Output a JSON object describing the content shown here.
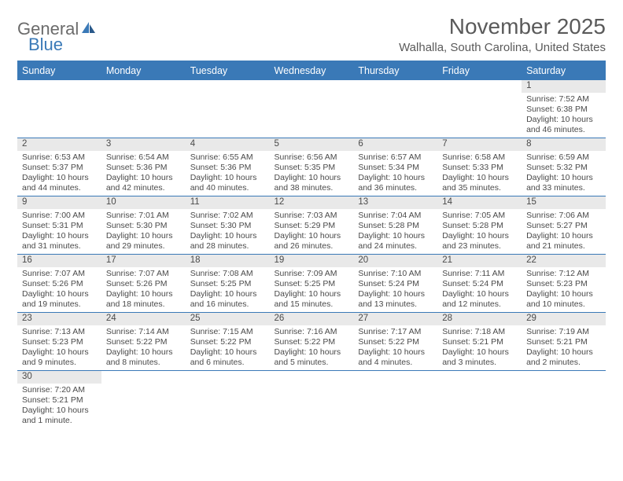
{
  "logo": {
    "text1": "General",
    "text2": "Blue"
  },
  "title": "November 2025",
  "location": "Walhalla, South Carolina, United States",
  "colors": {
    "header_bg": "#3a79b7",
    "daynum_bg": "#e9e9e9",
    "text": "#4a4a4a",
    "logo_gray": "#6b6b6b",
    "logo_blue": "#3a79b7"
  },
  "weekdays": [
    "Sunday",
    "Monday",
    "Tuesday",
    "Wednesday",
    "Thursday",
    "Friday",
    "Saturday"
  ],
  "weeks": [
    [
      null,
      null,
      null,
      null,
      null,
      null,
      {
        "n": "1",
        "sr": "Sunrise: 7:52 AM",
        "ss": "Sunset: 6:38 PM",
        "dl": "Daylight: 10 hours and 46 minutes."
      }
    ],
    [
      {
        "n": "2",
        "sr": "Sunrise: 6:53 AM",
        "ss": "Sunset: 5:37 PM",
        "dl": "Daylight: 10 hours and 44 minutes."
      },
      {
        "n": "3",
        "sr": "Sunrise: 6:54 AM",
        "ss": "Sunset: 5:36 PM",
        "dl": "Daylight: 10 hours and 42 minutes."
      },
      {
        "n": "4",
        "sr": "Sunrise: 6:55 AM",
        "ss": "Sunset: 5:36 PM",
        "dl": "Daylight: 10 hours and 40 minutes."
      },
      {
        "n": "5",
        "sr": "Sunrise: 6:56 AM",
        "ss": "Sunset: 5:35 PM",
        "dl": "Daylight: 10 hours and 38 minutes."
      },
      {
        "n": "6",
        "sr": "Sunrise: 6:57 AM",
        "ss": "Sunset: 5:34 PM",
        "dl": "Daylight: 10 hours and 36 minutes."
      },
      {
        "n": "7",
        "sr": "Sunrise: 6:58 AM",
        "ss": "Sunset: 5:33 PM",
        "dl": "Daylight: 10 hours and 35 minutes."
      },
      {
        "n": "8",
        "sr": "Sunrise: 6:59 AM",
        "ss": "Sunset: 5:32 PM",
        "dl": "Daylight: 10 hours and 33 minutes."
      }
    ],
    [
      {
        "n": "9",
        "sr": "Sunrise: 7:00 AM",
        "ss": "Sunset: 5:31 PM",
        "dl": "Daylight: 10 hours and 31 minutes."
      },
      {
        "n": "10",
        "sr": "Sunrise: 7:01 AM",
        "ss": "Sunset: 5:30 PM",
        "dl": "Daylight: 10 hours and 29 minutes."
      },
      {
        "n": "11",
        "sr": "Sunrise: 7:02 AM",
        "ss": "Sunset: 5:30 PM",
        "dl": "Daylight: 10 hours and 28 minutes."
      },
      {
        "n": "12",
        "sr": "Sunrise: 7:03 AM",
        "ss": "Sunset: 5:29 PM",
        "dl": "Daylight: 10 hours and 26 minutes."
      },
      {
        "n": "13",
        "sr": "Sunrise: 7:04 AM",
        "ss": "Sunset: 5:28 PM",
        "dl": "Daylight: 10 hours and 24 minutes."
      },
      {
        "n": "14",
        "sr": "Sunrise: 7:05 AM",
        "ss": "Sunset: 5:28 PM",
        "dl": "Daylight: 10 hours and 23 minutes."
      },
      {
        "n": "15",
        "sr": "Sunrise: 7:06 AM",
        "ss": "Sunset: 5:27 PM",
        "dl": "Daylight: 10 hours and 21 minutes."
      }
    ],
    [
      {
        "n": "16",
        "sr": "Sunrise: 7:07 AM",
        "ss": "Sunset: 5:26 PM",
        "dl": "Daylight: 10 hours and 19 minutes."
      },
      {
        "n": "17",
        "sr": "Sunrise: 7:07 AM",
        "ss": "Sunset: 5:26 PM",
        "dl": "Daylight: 10 hours and 18 minutes."
      },
      {
        "n": "18",
        "sr": "Sunrise: 7:08 AM",
        "ss": "Sunset: 5:25 PM",
        "dl": "Daylight: 10 hours and 16 minutes."
      },
      {
        "n": "19",
        "sr": "Sunrise: 7:09 AM",
        "ss": "Sunset: 5:25 PM",
        "dl": "Daylight: 10 hours and 15 minutes."
      },
      {
        "n": "20",
        "sr": "Sunrise: 7:10 AM",
        "ss": "Sunset: 5:24 PM",
        "dl": "Daylight: 10 hours and 13 minutes."
      },
      {
        "n": "21",
        "sr": "Sunrise: 7:11 AM",
        "ss": "Sunset: 5:24 PM",
        "dl": "Daylight: 10 hours and 12 minutes."
      },
      {
        "n": "22",
        "sr": "Sunrise: 7:12 AM",
        "ss": "Sunset: 5:23 PM",
        "dl": "Daylight: 10 hours and 10 minutes."
      }
    ],
    [
      {
        "n": "23",
        "sr": "Sunrise: 7:13 AM",
        "ss": "Sunset: 5:23 PM",
        "dl": "Daylight: 10 hours and 9 minutes."
      },
      {
        "n": "24",
        "sr": "Sunrise: 7:14 AM",
        "ss": "Sunset: 5:22 PM",
        "dl": "Daylight: 10 hours and 8 minutes."
      },
      {
        "n": "25",
        "sr": "Sunrise: 7:15 AM",
        "ss": "Sunset: 5:22 PM",
        "dl": "Daylight: 10 hours and 6 minutes."
      },
      {
        "n": "26",
        "sr": "Sunrise: 7:16 AM",
        "ss": "Sunset: 5:22 PM",
        "dl": "Daylight: 10 hours and 5 minutes."
      },
      {
        "n": "27",
        "sr": "Sunrise: 7:17 AM",
        "ss": "Sunset: 5:22 PM",
        "dl": "Daylight: 10 hours and 4 minutes."
      },
      {
        "n": "28",
        "sr": "Sunrise: 7:18 AM",
        "ss": "Sunset: 5:21 PM",
        "dl": "Daylight: 10 hours and 3 minutes."
      },
      {
        "n": "29",
        "sr": "Sunrise: 7:19 AM",
        "ss": "Sunset: 5:21 PM",
        "dl": "Daylight: 10 hours and 2 minutes."
      }
    ],
    [
      {
        "n": "30",
        "sr": "Sunrise: 7:20 AM",
        "ss": "Sunset: 5:21 PM",
        "dl": "Daylight: 10 hours and 1 minute."
      },
      null,
      null,
      null,
      null,
      null,
      null
    ]
  ]
}
